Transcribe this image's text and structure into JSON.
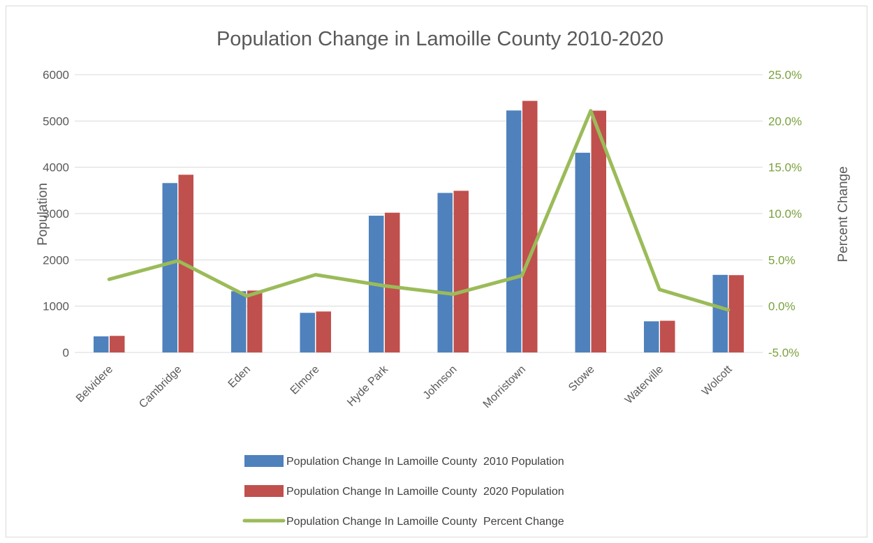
{
  "chart_data": {
    "type": "bar",
    "title": "Population Change in Lamoille County 2010-2020",
    "ylabel": "Population",
    "y2label": "Percent Change",
    "ylim": [
      0,
      6000
    ],
    "y2lim": [
      -5.0,
      25.0
    ],
    "yticks": [
      "0",
      "1000",
      "2000",
      "3000",
      "4000",
      "5000",
      "6000"
    ],
    "y2ticks": [
      "-5.0%",
      "0.0%",
      "5.0%",
      "10.0%",
      "15.0%",
      "20.0%",
      "25.0%"
    ],
    "categories": [
      "Belvidere",
      "Cambridge",
      "Eden",
      "Elmore",
      "Hyde Park",
      "Johnson",
      "Morristown",
      "Stowe",
      "Waterville",
      "Wolcott"
    ],
    "series": [
      {
        "name": "Population Change In Lamoille County  2010 Population",
        "type": "bar",
        "axis": "left",
        "color": "#4f81bd",
        "values": [
          348,
          3659,
          1323,
          856,
          2954,
          3446,
          5227,
          4314,
          673,
          1676
        ]
      },
      {
        "name": "Population Change In Lamoille County  2020 Population",
        "type": "bar",
        "axis": "left",
        "color": "#c0504d",
        "values": [
          358,
          3839,
          1337,
          885,
          3019,
          3492,
          5434,
          5223,
          685,
          1670
        ]
      },
      {
        "name": "Population Change In Lamoille County  Percent Change",
        "type": "line",
        "axis": "right",
        "color": "#9bbb59",
        "values": [
          2.9,
          4.9,
          1.1,
          3.4,
          2.2,
          1.3,
          3.3,
          21.1,
          1.8,
          -0.4
        ]
      }
    ],
    "grid": true,
    "legend_position": "bottom"
  }
}
